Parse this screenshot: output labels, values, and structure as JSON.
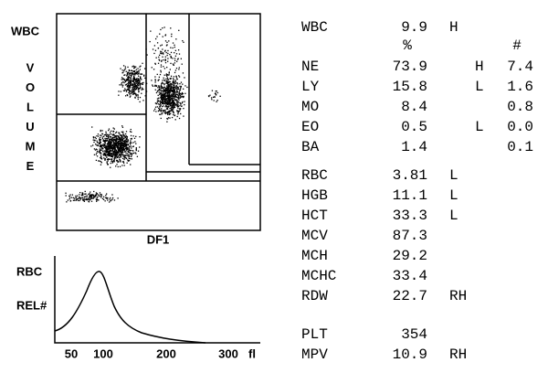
{
  "scatter": {
    "y_label": "WBC",
    "volume_label": "VOLUME",
    "x_label": "DF1"
  },
  "histogram": {
    "y_label": "RBC",
    "y_sublabel": "REL#",
    "ticks": [
      "50",
      "100",
      "200",
      "300",
      "fl"
    ]
  },
  "wbc": {
    "name": "WBC",
    "value": 9.9,
    "flag": "H"
  },
  "diff": {
    "pct_header": "%",
    "abs_header": "#",
    "rows": [
      {
        "name": "NE",
        "pct": 73.9,
        "flag": "H",
        "abs": 7.4
      },
      {
        "name": "LY",
        "pct": 15.8,
        "flag": "L",
        "abs": 1.6
      },
      {
        "name": "MO",
        "pct": 8.4,
        "abs": 0.8
      },
      {
        "name": "EO",
        "pct": 0.5,
        "flag": "L",
        "abs": "0.0"
      },
      {
        "name": "BA",
        "pct": 1.4,
        "abs": 0.1
      }
    ]
  },
  "rbc_params": [
    {
      "name": "RBC",
      "value": 3.81,
      "flag": "L"
    },
    {
      "name": "HGB",
      "value": 11.1,
      "flag": "L"
    },
    {
      "name": "HCT",
      "value": 33.3,
      "flag": "L"
    },
    {
      "name": "MCV",
      "value": 87.3
    },
    {
      "name": "MCH",
      "value": 29.2
    },
    {
      "name": "MCHC",
      "value": 33.4
    },
    {
      "name": "RDW",
      "value": 22.7,
      "flag": "RH"
    }
  ],
  "plt_params": [
    {
      "name": "PLT",
      "value": 354
    },
    {
      "name": "MPV",
      "value": 10.9,
      "flag": "RH"
    }
  ]
}
